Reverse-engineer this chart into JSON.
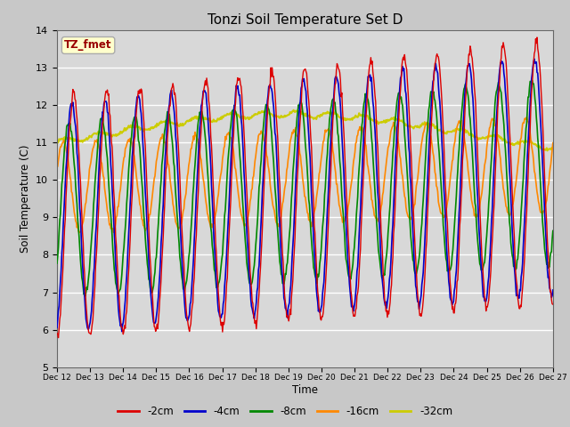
{
  "title": "Tonzi Soil Temperature Set D",
  "xlabel": "Time",
  "ylabel": "Soil Temperature (C)",
  "ylim": [
    5.0,
    14.0
  ],
  "yticks": [
    5.0,
    6.0,
    7.0,
    8.0,
    9.0,
    10.0,
    11.0,
    12.0,
    13.0,
    14.0
  ],
  "annotation": "TZ_fmet",
  "colors": {
    "2cm": "#dd0000",
    "4cm": "#0000cc",
    "8cm": "#008800",
    "16cm": "#ff8800",
    "32cm": "#cccc00"
  },
  "legend": [
    "-2cm",
    "-4cm",
    "-8cm",
    "-16cm",
    "-32cm"
  ],
  "fig_bg": "#c8c8c8",
  "ax_bg": "#d8d8d8"
}
